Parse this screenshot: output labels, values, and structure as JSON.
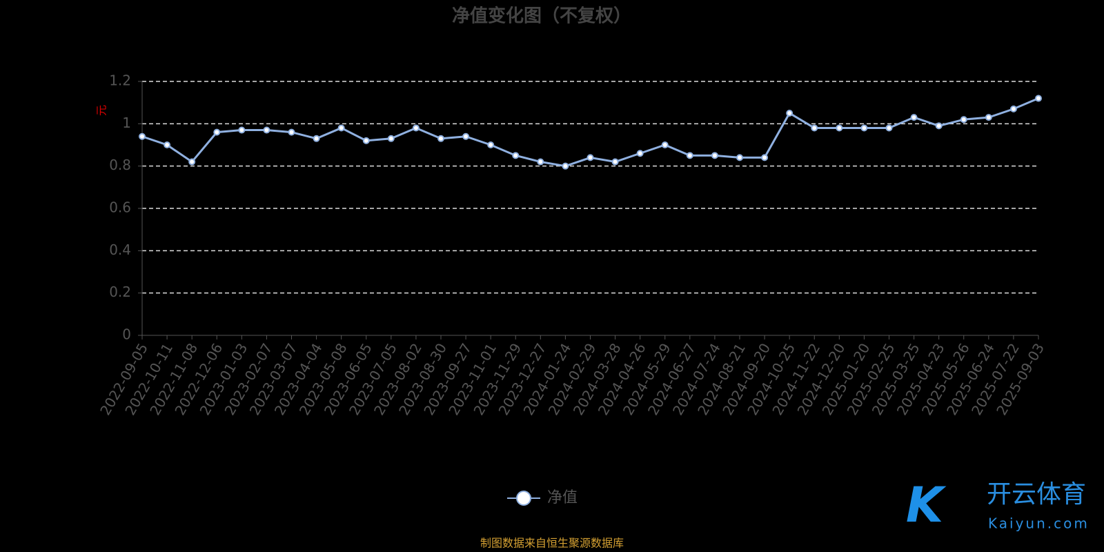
{
  "chart_data": {
    "type": "line",
    "title": "净值变化图（不复权）",
    "y_label": "元",
    "categories": [
      "2022-09-05",
      "2022-10-11",
      "2022-11-08",
      "2022-12-06",
      "2023-01-03",
      "2023-02-07",
      "2023-03-07",
      "2023-04-04",
      "2023-05-08",
      "2023-06-05",
      "2023-07-05",
      "2023-08-02",
      "2023-08-30",
      "2023-09-27",
      "2023-11-01",
      "2023-11-29",
      "2023-12-27",
      "2024-01-24",
      "2024-02-29",
      "2024-03-28",
      "2024-04-26",
      "2024-05-29",
      "2024-06-27",
      "2024-07-24",
      "2024-08-21",
      "2024-09-20",
      "2024-10-25",
      "2024-11-22",
      "2024-12-20",
      "2025-01-20",
      "2025-02-25",
      "2025-03-25",
      "2025-04-23",
      "2025-05-26",
      "2025-06-24",
      "2025-07-22",
      "2025-09-03"
    ],
    "series": [
      {
        "name": "净值",
        "color": "#8fb0e0",
        "values": [
          0.94,
          0.9,
          0.82,
          0.96,
          0.97,
          0.97,
          0.96,
          0.93,
          0.98,
          0.92,
          0.93,
          0.98,
          0.93,
          0.94,
          0.9,
          0.85,
          0.82,
          0.8,
          0.84,
          0.82,
          0.86,
          0.9,
          0.85,
          0.85,
          0.84,
          0.84,
          1.05,
          0.98,
          0.98,
          0.98,
          0.98,
          1.03,
          0.99,
          1.02,
          1.03,
          1.07,
          1.12
        ]
      }
    ],
    "ylim": [
      0,
      1.2
    ],
    "yticks": [
      0,
      0.2,
      0.4,
      0.6,
      0.8,
      1,
      1.2
    ],
    "grid": true,
    "source": "制图数据来自恒生聚源数据库",
    "watermark": {
      "brand": "开云体育",
      "site": "Kaiyun.com"
    }
  }
}
